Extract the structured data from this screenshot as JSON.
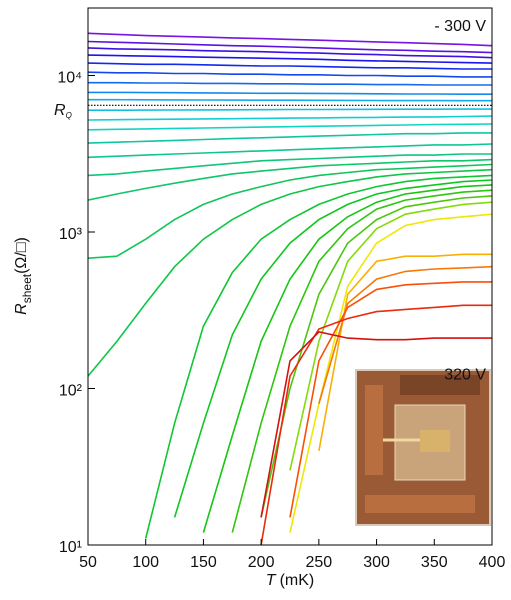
{
  "chart_data": {
    "type": "line",
    "x_label": {
      "var": "T",
      "unit": "(mK)"
    },
    "y_label": {
      "var": "R",
      "sub": "sheet",
      "unit": "(Ω/□)"
    },
    "annotations": [
      {
        "text": "- 300 V",
        "x": 400,
        "y": 21000
      },
      {
        "text": "320 V",
        "x": 400,
        "y": 125
      }
    ],
    "reference_line": {
      "text": "R",
      "sub": "Q",
      "value": 6450
    },
    "log_y": true,
    "xlim": [
      50,
      400
    ],
    "xticks": [
      50,
      100,
      150,
      200,
      250,
      300,
      350,
      400
    ],
    "ylim": [
      10,
      27000
    ],
    "yticks": [
      {
        "value": 10,
        "label": "10¹"
      },
      {
        "value": 100,
        "label": "10²"
      },
      {
        "value": 1000,
        "label": "10³"
      },
      {
        "value": 10000,
        "label": "10⁴"
      }
    ],
    "x": [
      50,
      75,
      100,
      125,
      150,
      175,
      200,
      225,
      250,
      275,
      300,
      325,
      350,
      375,
      400
    ],
    "series": [
      {
        "color": "hsl(270,85%,48%)",
        "values": [
          18600,
          18300,
          18000,
          17800,
          17600,
          17400,
          17200,
          17000,
          16800,
          16600,
          16400,
          16200,
          16000,
          15800,
          15500
        ]
      },
      {
        "color": "hsl(261,85%,48%)",
        "values": [
          16500,
          16300,
          16100,
          15900,
          15700,
          15500,
          15400,
          15200,
          15000,
          14800,
          14600,
          14500,
          14300,
          14200,
          14000
        ]
      },
      {
        "color": "hsl(252,85%,48%)",
        "values": [
          15000,
          14800,
          14700,
          14600,
          14400,
          14300,
          14200,
          14000,
          13900,
          13700,
          13600,
          13400,
          13300,
          13200,
          13000
        ]
      },
      {
        "color": "hsl(243,85%,50%)",
        "values": [
          13500,
          13400,
          13300,
          13200,
          13100,
          13000,
          12900,
          12800,
          12700,
          12500,
          12400,
          12300,
          12200,
          12100,
          12000
        ]
      },
      {
        "color": "hsl(234,85%,50%)",
        "values": [
          12000,
          11900,
          11800,
          11800,
          11700,
          11600,
          11500,
          11500,
          11400,
          11300,
          11200,
          11200,
          11100,
          11000,
          11000
        ]
      },
      {
        "color": "hsl(225,85%,50%)",
        "values": [
          10500,
          10400,
          10400,
          10300,
          10300,
          10200,
          10200,
          10100,
          10100,
          10000,
          10000,
          9900,
          9900,
          9800,
          9800
        ]
      },
      {
        "color": "hsl(216,85%,50%)",
        "values": [
          9000,
          9000,
          8950,
          8950,
          8900,
          8900,
          8850,
          8850,
          8800,
          8800,
          8750,
          8750,
          8700,
          8700,
          8700
        ]
      },
      {
        "color": "hsl(207,85%,50%)",
        "values": [
          7800,
          7800,
          7780,
          7760,
          7740,
          7720,
          7700,
          7700,
          7680,
          7660,
          7640,
          7620,
          7620,
          7600,
          7600
        ]
      },
      {
        "color": "hsl(198,85%,50%)",
        "values": [
          7000,
          7000,
          6990,
          6980,
          6970,
          6960,
          6950,
          6950,
          6940,
          6930,
          6920,
          6910,
          6910,
          6900,
          6900
        ]
      },
      {
        "color": "hsl(190,85%,48%)",
        "values": [
          6000,
          6000,
          6010,
          6020,
          6030,
          6040,
          6050,
          6060,
          6060,
          6070,
          6080,
          6090,
          6090,
          6100,
          6100
        ]
      },
      {
        "color": "hsl(182,85%,45%)",
        "values": [
          5200,
          5220,
          5240,
          5260,
          5280,
          5300,
          5320,
          5340,
          5360,
          5380,
          5400,
          5420,
          5440,
          5470,
          5500
        ]
      },
      {
        "color": "hsl(175,85%,45%)",
        "values": [
          4500,
          4530,
          4560,
          4590,
          4620,
          4650,
          4680,
          4710,
          4740,
          4770,
          4800,
          4830,
          4860,
          4880,
          4900
        ]
      },
      {
        "color": "hsl(168,85%,42%)",
        "values": [
          3700,
          3750,
          3800,
          3850,
          3900,
          3950,
          4000,
          4050,
          4100,
          4150,
          4200,
          4250,
          4250,
          4300,
          4300
        ]
      },
      {
        "color": "hsl(162,85%,42%)",
        "values": [
          3000,
          3050,
          3100,
          3150,
          3200,
          3250,
          3300,
          3350,
          3400,
          3450,
          3500,
          3550,
          3600,
          3600,
          3650
        ]
      },
      {
        "color": "hsl(156,85%,42%)",
        "values": [
          2300,
          2350,
          2450,
          2550,
          2650,
          2750,
          2850,
          2900,
          2950,
          3000,
          3050,
          3100,
          3100,
          3150,
          3150
        ]
      },
      {
        "color": "hsl(150,85%,42%)",
        "values": [
          1600,
          1750,
          1900,
          2050,
          2200,
          2350,
          2450,
          2550,
          2650,
          2700,
          2750,
          2800,
          2850,
          2850,
          2900
        ]
      },
      {
        "color": "hsl(144,85%,42%)",
        "values": [
          680,
          700,
          900,
          1200,
          1500,
          1750,
          1950,
          2150,
          2300,
          2400,
          2500,
          2550,
          2600,
          2650,
          2700
        ]
      },
      {
        "color": "hsl(138,85%,42%)",
        "values": [
          120,
          200,
          350,
          600,
          900,
          1200,
          1500,
          1750,
          1950,
          2100,
          2250,
          2350,
          2400,
          2450,
          2500
        ]
      },
      {
        "color": "hsl(132,85%,42%)",
        "values": [
          null,
          null,
          11,
          60,
          250,
          550,
          900,
          1200,
          1500,
          1750,
          1950,
          2100,
          2200,
          2250,
          2300
        ]
      },
      {
        "color": "hsl(126,85%,42%)",
        "values": [
          null,
          null,
          null,
          15,
          60,
          220,
          500,
          850,
          1200,
          1500,
          1750,
          1900,
          2000,
          2100,
          2150
        ]
      },
      {
        "color": "hsl(118,85%,42%)",
        "values": [
          null,
          null,
          null,
          null,
          12,
          50,
          200,
          500,
          900,
          1250,
          1550,
          1750,
          1850,
          1950,
          2000
        ]
      },
      {
        "color": "hsl(110,85%,42%)",
        "values": [
          null,
          null,
          null,
          null,
          null,
          12,
          60,
          250,
          650,
          1050,
          1400,
          1600,
          1700,
          1800,
          1850
        ]
      },
      {
        "color": "hsl(100,85%,42%)",
        "values": [
          null,
          null,
          null,
          null,
          null,
          null,
          15,
          100,
          400,
          850,
          1200,
          1450,
          1550,
          1650,
          1700
        ]
      },
      {
        "color": "hsl(85,90%,45%)",
        "values": [
          null,
          null,
          null,
          null,
          null,
          null,
          null,
          30,
          200,
          650,
          1050,
          1300,
          1400,
          1500,
          1550
        ]
      },
      {
        "color": "hsl(58,95%,48%)",
        "values": [
          null,
          null,
          null,
          null,
          null,
          null,
          null,
          12,
          80,
          450,
          850,
          1100,
          1200,
          1250,
          1300
        ]
      },
      {
        "color": "hsl(42,95%,50%)",
        "values": [
          null,
          null,
          null,
          null,
          null,
          null,
          null,
          null,
          40,
          400,
          650,
          700,
          700,
          720,
          720
        ]
      },
      {
        "color": "hsl(28,95%,50%)",
        "values": [
          null,
          null,
          null,
          null,
          null,
          null,
          null,
          null,
          80,
          350,
          500,
          560,
          580,
          590,
          600
        ]
      },
      {
        "color": "hsl(18,95%,50%)",
        "values": [
          null,
          null,
          null,
          null,
          null,
          null,
          null,
          15,
          150,
          330,
          430,
          460,
          470,
          480,
          480
        ]
      },
      {
        "color": "hsl(8,90%,48%)",
        "values": [
          null,
          null,
          null,
          null,
          null,
          null,
          10,
          120,
          240,
          280,
          310,
          320,
          330,
          340,
          340
        ]
      },
      {
        "color": "hsl(0,85%,45%)",
        "values": [
          null,
          null,
          null,
          null,
          null,
          null,
          15,
          150,
          230,
          210,
          205,
          205,
          210,
          210,
          210
        ]
      }
    ]
  }
}
